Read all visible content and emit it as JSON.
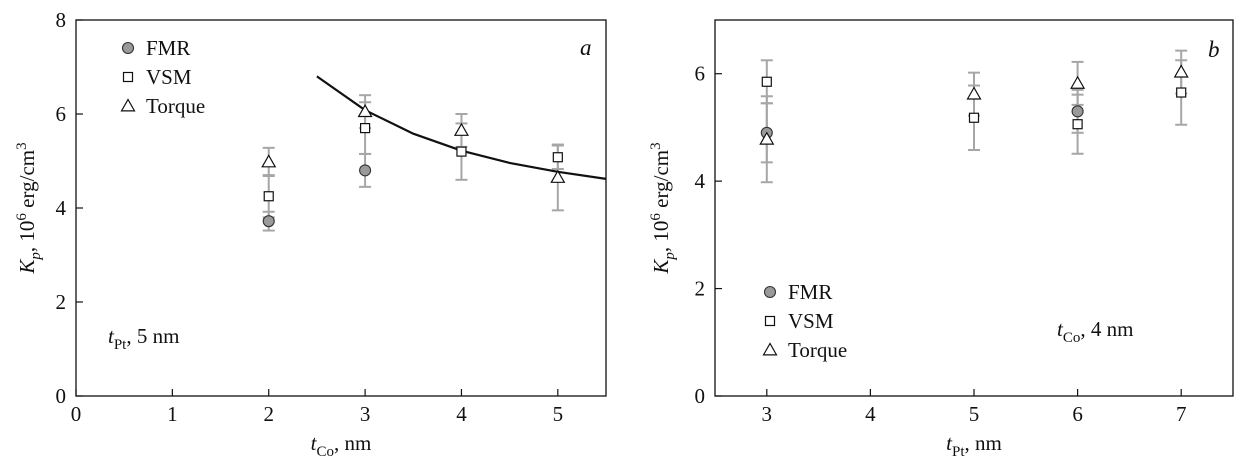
{
  "chart_data": [
    {
      "type": "scatter",
      "panel_label": "a",
      "xlabel": {
        "main": "t",
        "sub": "Co",
        "rest": ", nm"
      },
      "ylabel": {
        "main": "K",
        "sub": "p",
        "rest1": ", 10",
        "sup1": "6",
        "rest2": " erg/cm",
        "sup2": "3"
      },
      "xlim": [
        0,
        5.5
      ],
      "ylim": [
        0,
        8
      ],
      "xticks": [
        0,
        1,
        2,
        3,
        4,
        5
      ],
      "yticks": [
        0,
        2,
        4,
        6,
        8
      ],
      "annotation": {
        "main": "t",
        "sub": "Pt",
        "rest": ", 5 nm"
      },
      "legend_position": "top-left",
      "series": [
        {
          "name": "FMR",
          "marker": "circle",
          "points": [
            {
              "x": 2,
              "y": 3.72,
              "err": 0.2
            },
            {
              "x": 3,
              "y": 4.8,
              "err": 0.35
            }
          ]
        },
        {
          "name": "VSM",
          "marker": "square",
          "points": [
            {
              "x": 2,
              "y": 4.25,
              "err": 0.45
            },
            {
              "x": 3,
              "y": 5.7,
              "err": 0.55
            },
            {
              "x": 4,
              "y": 5.2,
              "err": 0.6
            },
            {
              "x": 5,
              "y": 5.08,
              "err": 0.25
            }
          ]
        },
        {
          "name": "Torque",
          "marker": "triangle",
          "points": [
            {
              "x": 2,
              "y": 4.98,
              "err": 0.3
            },
            {
              "x": 3,
              "y": 6.05,
              "err": 0.35
            },
            {
              "x": 4,
              "y": 5.65,
              "err": 0.35
            },
            {
              "x": 5,
              "y": 4.65,
              "err": 0.7
            }
          ]
        }
      ],
      "fit_curve": {
        "x": [
          2.5,
          3.0,
          3.5,
          4.0,
          4.5,
          5.0,
          5.5
        ],
        "y": [
          6.8,
          6.08,
          5.58,
          5.22,
          4.96,
          4.77,
          4.62
        ]
      }
    },
    {
      "type": "scatter",
      "panel_label": "b",
      "xlabel": {
        "main": "t",
        "sub": "Pt",
        "rest": ", nm"
      },
      "ylabel": {
        "main": "K",
        "sub": "p",
        "rest1": ", 10",
        "sup1": "6",
        "rest2": " erg/cm",
        "sup2": "3"
      },
      "xlim": [
        2.5,
        7.5
      ],
      "ylim": [
        0,
        7
      ],
      "xticks": [
        3,
        4,
        5,
        6,
        7
      ],
      "yticks": [
        0,
        2,
        4,
        6
      ],
      "annotation": {
        "main": "t",
        "sub": "Co",
        "rest": ", 4 nm"
      },
      "legend_position": "bottom-left",
      "series": [
        {
          "name": "FMR",
          "marker": "circle",
          "points": [
            {
              "x": 3,
              "y": 4.9,
              "err": 0.55
            },
            {
              "x": 6,
              "y": 5.3,
              "err": 0.4
            }
          ]
        },
        {
          "name": "VSM",
          "marker": "square",
          "points": [
            {
              "x": 3,
              "y": 5.85,
              "err": 0.4
            },
            {
              "x": 5,
              "y": 5.18,
              "err": 0.6
            },
            {
              "x": 6,
              "y": 5.06,
              "err": 0.55
            },
            {
              "x": 7,
              "y": 5.65,
              "err": 0.6
            }
          ]
        },
        {
          "name": "Torque",
          "marker": "triangle",
          "points": [
            {
              "x": 3,
              "y": 4.78,
              "err": 0.8
            },
            {
              "x": 5,
              "y": 5.62,
              "err": 0.4
            },
            {
              "x": 6,
              "y": 5.82,
              "err": 0.4
            },
            {
              "x": 7,
              "y": 6.03,
              "err": 0.4
            }
          ]
        }
      ]
    }
  ]
}
